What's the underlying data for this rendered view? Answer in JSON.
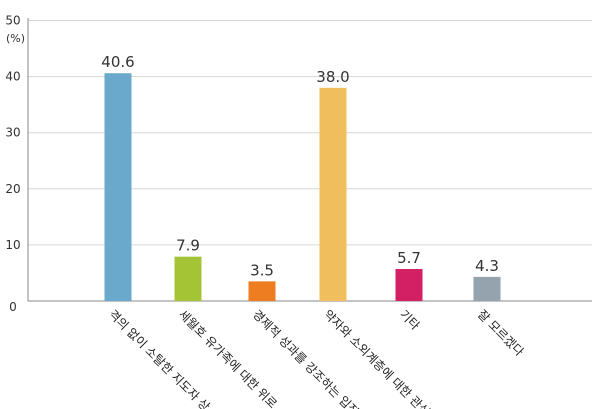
{
  "chart_data": {
    "type": "bar",
    "title": "",
    "xlabel": "",
    "ylabel": "",
    "unit": "(%)",
    "ylim": [
      0,
      50
    ],
    "yticks": [
      0,
      10,
      20,
      30,
      40,
      50
    ],
    "grid": true,
    "categories": [
      "격의 없이 소탈한 지도자 상",
      "세월호 유가족에 대한 위로",
      "경제적 성과를 강조하는 입장",
      "약자와 소외계층에 대한 관심",
      "기타",
      "잘 모르겠다"
    ],
    "values": [
      40.6,
      7.9,
      3.5,
      38.0,
      5.7,
      4.3
    ],
    "value_labels": [
      "40.6",
      "7.9",
      "3.5",
      "38.0",
      "5.7",
      "4.3"
    ],
    "colors": [
      "#6aa8cc",
      "#a5c435",
      "#ee7d22",
      "#f0be5c",
      "#d31f63",
      "#95a3ae"
    ]
  }
}
